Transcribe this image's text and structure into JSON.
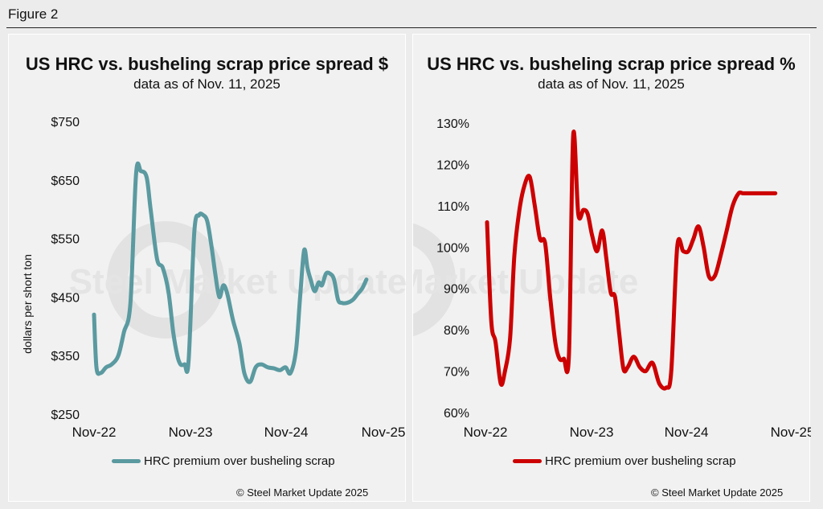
{
  "figure_label": "Figure 2",
  "watermark": "Steel Market Update",
  "colors": {
    "left_series": "#5a9aa0",
    "right_series": "#cc0000"
  },
  "chart_data": [
    {
      "type": "line",
      "title": "US HRC vs. busheling scrap price spread $",
      "subtitle": "data as of Nov. 11, 2025",
      "ylabel": "dollars per short ton",
      "ylim": [
        250,
        750
      ],
      "yticks": [
        250,
        350,
        450,
        550,
        650,
        750
      ],
      "ytick_labels": [
        "$250",
        "$350",
        "$450",
        "$550",
        "$650",
        "$750"
      ],
      "xtick_labels": [
        "Nov-22",
        "Nov-23",
        "Nov-24",
        "Nov-25"
      ],
      "x_range": [
        0,
        36
      ],
      "series": [
        {
          "name": "HRC premium over busheling scrap",
          "x": [
            0,
            0.3,
            0.8,
            1.5,
            2.2,
            3,
            3.7,
            4.5,
            5.2,
            5.8,
            6.5,
            7,
            7.8,
            8.5,
            9.2,
            9.8,
            10.3,
            10.7,
            11.2,
            11.7,
            12.4,
            13,
            13.5,
            14,
            14.5,
            15,
            15.5,
            16,
            16.5,
            17.2,
            18,
            18.6,
            19.3,
            20,
            20.7,
            21.5,
            22.3,
            23,
            23.7,
            24.3,
            25,
            25.5,
            26,
            26.4,
            26.8,
            27.3,
            27.8,
            28.2,
            28.7,
            29.2,
            29.7,
            30.2,
            30.7,
            31.3,
            32,
            32.6,
            33.2,
            33.7
          ],
          "values": [
            420,
            330,
            320,
            330,
            335,
            350,
            390,
            440,
            660,
            665,
            655,
            600,
            515,
            500,
            460,
            390,
            350,
            335,
            335,
            340,
            560,
            590,
            590,
            580,
            540,
            490,
            450,
            470,
            455,
            410,
            370,
            320,
            305,
            330,
            335,
            330,
            328,
            325,
            330,
            320,
            360,
            450,
            530,
            500,
            480,
            460,
            475,
            470,
            490,
            490,
            480,
            445,
            440,
            440,
            445,
            455,
            465,
            480
          ]
        }
      ],
      "copyright": "© Steel Market Update 2025"
    },
    {
      "type": "line",
      "title": "US HRC vs. busheling scrap price spread %",
      "subtitle": "data as of Nov. 11, 2025",
      "ylim": [
        60,
        130
      ],
      "yticks": [
        60,
        70,
        80,
        90,
        100,
        110,
        120,
        130
      ],
      "ytick_labels": [
        "60%",
        "70%",
        "80%",
        "90%",
        "100%",
        "110%",
        "120%",
        "130%"
      ],
      "xtick_labels": [
        "Nov-22",
        "Nov-23",
        "Nov-24",
        "Nov-25"
      ],
      "x_range": [
        0,
        36
      ],
      "series": [
        {
          "name": "HRC premium over busheling scrap",
          "x": [
            0,
            0.5,
            1,
            1.6,
            2.1,
            2.7,
            3.2,
            3.8,
            4.4,
            5,
            5.6,
            6.2,
            6.8,
            7.4,
            8,
            8.5,
            9,
            9.6,
            10.1,
            10.7,
            11.3,
            11.8,
            12.3,
            12.9,
            13.5,
            14,
            14.5,
            15,
            15.5,
            16,
            16.5,
            17.2,
            17.9,
            18.6,
            19.4,
            20.2,
            21,
            21.6,
            22.3,
            23,
            23.6,
            24.2,
            24.8,
            25.4,
            26,
            26.7,
            27.4,
            28.1,
            28.8,
            29.5,
            30,
            30.5,
            31,
            31.6,
            32.2,
            32.7,
            33.3,
            33.8
          ],
          "values": [
            106,
            82,
            77,
            67,
            70,
            78,
            98,
            109,
            115,
            117,
            110,
            102,
            101,
            88,
            77,
            73,
            73,
            74,
            127,
            108,
            109,
            108,
            103,
            99,
            104,
            97,
            89,
            88,
            79,
            70.5,
            71,
            73.5,
            71,
            70,
            72,
            67,
            66,
            70,
            100,
            99,
            99,
            102,
            105,
            100,
            93,
            93,
            98,
            104,
            110,
            113,
            113,
            113,
            113,
            113,
            113,
            113,
            113,
            113
          ]
        }
      ],
      "copyright": "© Steel Market Update 2025"
    }
  ]
}
